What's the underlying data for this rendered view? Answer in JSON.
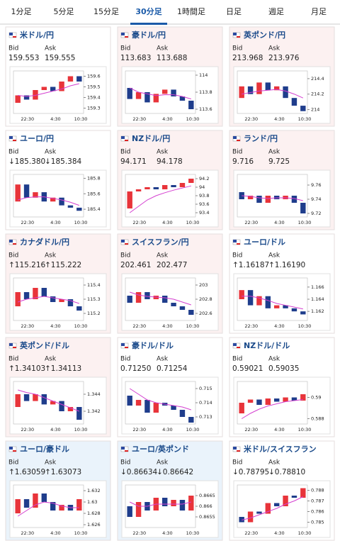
{
  "tabs": [
    "1分足",
    "5分足",
    "15分足",
    "30分足",
    "1時間足",
    "日足",
    "週足",
    "月足"
  ],
  "active_tab": 3,
  "bid_label": "Bid",
  "ask_label": "Ask",
  "xticks": [
    "22:30",
    "4:30",
    "10:30"
  ],
  "up_color": "#e8343a",
  "down_color": "#1f3d8c",
  "ma_color": "#d43fd0",
  "cards": [
    {
      "name": "米ドル/円",
      "bid": "159.553",
      "ask": "159.555",
      "background": "#ffffff",
      "chart": {
        "ylim": [
          159.25,
          159.65
        ],
        "yticks": [
          159.3,
          159.4,
          159.5,
          159.6
        ],
        "candles": [
          [
            159.35,
            159.42
          ],
          [
            159.42,
            159.38
          ],
          [
            159.38,
            159.47
          ],
          [
            159.47,
            159.5
          ],
          [
            159.5,
            159.46
          ],
          [
            159.46,
            159.55
          ],
          [
            159.55,
            159.6
          ],
          [
            159.6,
            159.55
          ]
        ],
        "ma": [
          159.42,
          159.41,
          159.42,
          159.44,
          159.46,
          159.48,
          159.51,
          159.53
        ]
      }
    },
    {
      "name": "豪ドル/円",
      "bid": "113.683",
      "ask": "113.688",
      "background": "#fcf1f1",
      "chart": {
        "ylim": [
          113.55,
          114.05
        ],
        "yticks": [
          113.6,
          113.8,
          114
        ],
        "candles": [
          [
            113.85,
            113.72
          ],
          [
            113.72,
            113.8
          ],
          [
            113.8,
            113.68
          ],
          [
            113.68,
            113.78
          ],
          [
            113.78,
            113.83
          ],
          [
            113.83,
            113.75
          ],
          [
            113.75,
            113.7
          ],
          [
            113.7,
            113.6
          ]
        ],
        "ma": [
          113.85,
          113.8,
          113.78,
          113.76,
          113.77,
          113.77,
          113.75,
          113.72
        ]
      }
    },
    {
      "name": "英ポンド/円",
      "bid": "213.968",
      "ask": "213.976",
      "background": "#fcf1f1",
      "chart": {
        "ylim": [
          213.95,
          214.5
        ],
        "yticks": [
          214,
          214.2,
          214.4
        ],
        "candles": [
          [
            214.15,
            214.3
          ],
          [
            214.3,
            214.2
          ],
          [
            214.2,
            214.35
          ],
          [
            214.35,
            214.25
          ],
          [
            214.25,
            214.3
          ],
          [
            214.3,
            214.15
          ],
          [
            214.15,
            214.05
          ],
          [
            214.05,
            213.98
          ]
        ],
        "ma": [
          214.2,
          214.22,
          214.24,
          214.25,
          214.26,
          214.24,
          214.2,
          214.15
        ]
      }
    },
    {
      "name": "ユーロ/円",
      "bid": "↓185.380",
      "ask": "↓185.384",
      "background": "#ffffff",
      "chart": {
        "ylim": [
          185.3,
          185.85
        ],
        "yticks": [
          185.4,
          185.6,
          185.8
        ],
        "candles": [
          [
            185.5,
            185.72
          ],
          [
            185.72,
            185.55
          ],
          [
            185.55,
            185.62
          ],
          [
            185.62,
            185.5
          ],
          [
            185.5,
            185.55
          ],
          [
            185.55,
            185.45
          ],
          [
            185.45,
            185.42
          ],
          [
            185.42,
            185.38
          ]
        ],
        "ma": [
          185.52,
          185.55,
          185.56,
          185.56,
          185.54,
          185.52,
          185.49,
          185.45
        ]
      }
    },
    {
      "name": "NZドル/円",
      "bid": "94.171",
      "ask": "94.178",
      "background": "#fcf1f1",
      "chart": {
        "ylim": [
          93.3,
          94.3
        ],
        "yticks": [
          93.4,
          93.6,
          93.8,
          94,
          94.2
        ],
        "candles": [
          [
            93.5,
            93.9
          ],
          [
            93.9,
            93.95
          ],
          [
            93.95,
            94.0
          ],
          [
            94.0,
            93.95
          ],
          [
            93.95,
            94.05
          ],
          [
            94.05,
            94.0
          ],
          [
            94.0,
            94.1
          ],
          [
            94.1,
            94.2
          ]
        ],
        "ma": [
          93.4,
          93.55,
          93.7,
          93.8,
          93.87,
          93.93,
          93.98,
          94.03
        ]
      }
    },
    {
      "name": "ランド/円",
      "bid": "9.716",
      "ask": "9.725",
      "background": "#fcf1f1",
      "chart": {
        "ylim": [
          9.715,
          9.775
        ],
        "yticks": [
          9.72,
          9.74,
          9.76
        ],
        "candles": [
          [
            9.75,
            9.74
          ],
          [
            9.74,
            9.745
          ],
          [
            9.745,
            9.735
          ],
          [
            9.735,
            9.745
          ],
          [
            9.745,
            9.74
          ],
          [
            9.74,
            9.745
          ],
          [
            9.745,
            9.735
          ],
          [
            9.735,
            9.72
          ]
        ],
        "ma": [
          9.745,
          9.744,
          9.742,
          9.741,
          9.742,
          9.742,
          9.741,
          9.738
        ]
      }
    },
    {
      "name": "カナダドル/円",
      "bid": "↑115.216",
      "ask": "↑115.222",
      "background": "#fcf1f1",
      "chart": {
        "ylim": [
          115.15,
          115.45
        ],
        "yticks": [
          115.2,
          115.3,
          115.4
        ],
        "candles": [
          [
            115.25,
            115.35
          ],
          [
            115.35,
            115.3
          ],
          [
            115.3,
            115.38
          ],
          [
            115.38,
            115.32
          ],
          [
            115.32,
            115.28
          ],
          [
            115.28,
            115.3
          ],
          [
            115.3,
            115.25
          ],
          [
            115.25,
            115.22
          ]
        ],
        "ma": [
          115.28,
          115.3,
          115.31,
          115.32,
          115.31,
          115.3,
          115.29,
          115.27
        ]
      }
    },
    {
      "name": "スイスフラン/円",
      "bid": "202.461",
      "ask": "202.477",
      "background": "#fcf1f1",
      "chart": {
        "ylim": [
          202.5,
          203.1
        ],
        "yticks": [
          202.6,
          202.8,
          203
        ],
        "candles": [
          [
            202.85,
            202.75
          ],
          [
            202.75,
            202.9
          ],
          [
            202.9,
            202.8
          ],
          [
            202.8,
            202.85
          ],
          [
            202.85,
            202.75
          ],
          [
            202.75,
            202.7
          ],
          [
            202.7,
            202.65
          ],
          [
            202.65,
            202.58
          ]
        ],
        "ma": [
          202.9,
          202.86,
          202.84,
          202.83,
          202.82,
          202.8,
          202.76,
          202.72
        ]
      }
    },
    {
      "name": "ユーロ/ドル",
      "bid": "↑1.16187",
      "ask": "↑1.16190",
      "background": "#ffffff",
      "chart": {
        "ylim": [
          1.1605,
          1.1675
        ],
        "yticks": [
          1.162,
          1.164,
          1.166
        ],
        "candles": [
          [
            1.164,
            1.1655
          ],
          [
            1.1655,
            1.163
          ],
          [
            1.163,
            1.1645
          ],
          [
            1.1645,
            1.1625
          ],
          [
            1.1625,
            1.163
          ],
          [
            1.163,
            1.1625
          ],
          [
            1.1625,
            1.162
          ],
          [
            1.162,
            1.1615
          ]
        ],
        "ma": [
          1.1645,
          1.1645,
          1.1642,
          1.1638,
          1.1633,
          1.163,
          1.1627,
          1.1624
        ]
      }
    },
    {
      "name": "英ポンド/ドル",
      "bid": "↑1.34103",
      "ask": "↑1.34113",
      "background": "#fcf1f1",
      "chart": {
        "ylim": [
          1.3405,
          1.3455
        ],
        "yticks": [
          1.342,
          1.344
        ],
        "candles": [
          [
            1.3425,
            1.344
          ],
          [
            1.344,
            1.3432
          ],
          [
            1.3432,
            1.344
          ],
          [
            1.344,
            1.3428
          ],
          [
            1.3428,
            1.3432
          ],
          [
            1.3432,
            1.342
          ],
          [
            1.342,
            1.3425
          ],
          [
            1.3425,
            1.341
          ]
        ],
        "ma": [
          1.3445,
          1.3442,
          1.344,
          1.3436,
          1.3432,
          1.3428,
          1.3424,
          1.342
        ]
      }
    },
    {
      "name": "豪ドル/ドル",
      "bid": "0.71250",
      "ask": "0.71254",
      "background": "#ffffff",
      "chart": {
        "ylim": [
          0.7125,
          0.7155
        ],
        "yticks": [
          0.713,
          0.714,
          0.715
        ],
        "candles": [
          [
            0.7145,
            0.7138
          ],
          [
            0.7138,
            0.7142
          ],
          [
            0.7142,
            0.7133
          ],
          [
            0.7133,
            0.714
          ],
          [
            0.714,
            0.7138
          ],
          [
            0.7138,
            0.7135
          ],
          [
            0.7135,
            0.713
          ],
          [
            0.713,
            0.7126
          ]
        ],
        "ma": [
          0.715,
          0.7146,
          0.7142,
          0.714,
          0.7139,
          0.7138,
          0.7137,
          0.7135
        ]
      }
    },
    {
      "name": "NZドル/ドル",
      "bid": "0.59021",
      "ask": "0.59035",
      "background": "#ffffff",
      "chart": {
        "ylim": [
          0.5875,
          0.5915
        ],
        "yticks": [
          0.588,
          0.59
        ],
        "candles": [
          [
            0.5885,
            0.5895
          ],
          [
            0.5895,
            0.5898
          ],
          [
            0.5898,
            0.5893
          ],
          [
            0.5893,
            0.5899
          ],
          [
            0.5899,
            0.5896
          ],
          [
            0.5896,
            0.59
          ],
          [
            0.59,
            0.5897
          ],
          [
            0.5897,
            0.5903
          ]
        ],
        "ma": [
          0.588,
          0.5885,
          0.5889,
          0.5892,
          0.5894,
          0.5896,
          0.5897,
          0.5898
        ]
      }
    },
    {
      "name": "ユーロ/豪ドル",
      "bid": "↑1.63059",
      "ask": "↑1.63073",
      "background": "#eaf3fb",
      "chart": {
        "ylim": [
          1.6255,
          1.633
        ],
        "yticks": [
          1.626,
          1.628,
          1.63,
          1.632
        ],
        "candles": [
          [
            1.628,
            1.6305
          ],
          [
            1.6305,
            1.629
          ],
          [
            1.629,
            1.6315
          ],
          [
            1.6315,
            1.63
          ],
          [
            1.63,
            1.6285
          ],
          [
            1.6285,
            1.6295
          ],
          [
            1.6295,
            1.6285
          ],
          [
            1.6285,
            1.6305
          ]
        ],
        "ma": [
          1.6275,
          1.6285,
          1.6295,
          1.63,
          1.6298,
          1.6293,
          1.629,
          1.629
        ]
      }
    },
    {
      "name": "ユーロ/英ポンド",
      "bid": "↓0.86634",
      "ask": "↓0.86642",
      "background": "#eaf3fb",
      "chart": {
        "ylim": [
          0.865,
          0.867
        ],
        "yticks": [
          0.8655,
          0.866,
          0.8665
        ],
        "candles": [
          [
            0.866,
            0.8655
          ],
          [
            0.8655,
            0.8662
          ],
          [
            0.8662,
            0.8658
          ],
          [
            0.8658,
            0.8664
          ],
          [
            0.8664,
            0.866
          ],
          [
            0.866,
            0.8663
          ],
          [
            0.8663,
            0.8658
          ],
          [
            0.8658,
            0.8665
          ]
        ],
        "ma": [
          0.8662,
          0.866,
          0.866,
          0.8661,
          0.8661,
          0.8661,
          0.8661,
          0.8662
        ]
      }
    },
    {
      "name": "米ドル/スイスフラン",
      "bid": "↓0.78795",
      "ask": "↓0.78810",
      "background": "#ffffff",
      "chart": {
        "ylim": [
          0.7845,
          0.7885
        ],
        "yticks": [
          0.785,
          0.786,
          0.787,
          0.788
        ],
        "candles": [
          [
            0.7855,
            0.785
          ],
          [
            0.785,
            0.786
          ],
          [
            0.786,
            0.7858
          ],
          [
            0.7858,
            0.7868
          ],
          [
            0.7868,
            0.7865
          ],
          [
            0.7865,
            0.7875
          ],
          [
            0.7875,
            0.7873
          ],
          [
            0.7873,
            0.7882
          ]
        ],
        "ma": [
          0.7852,
          0.7854,
          0.7857,
          0.786,
          0.7863,
          0.7867,
          0.787,
          0.7874
        ]
      }
    }
  ]
}
